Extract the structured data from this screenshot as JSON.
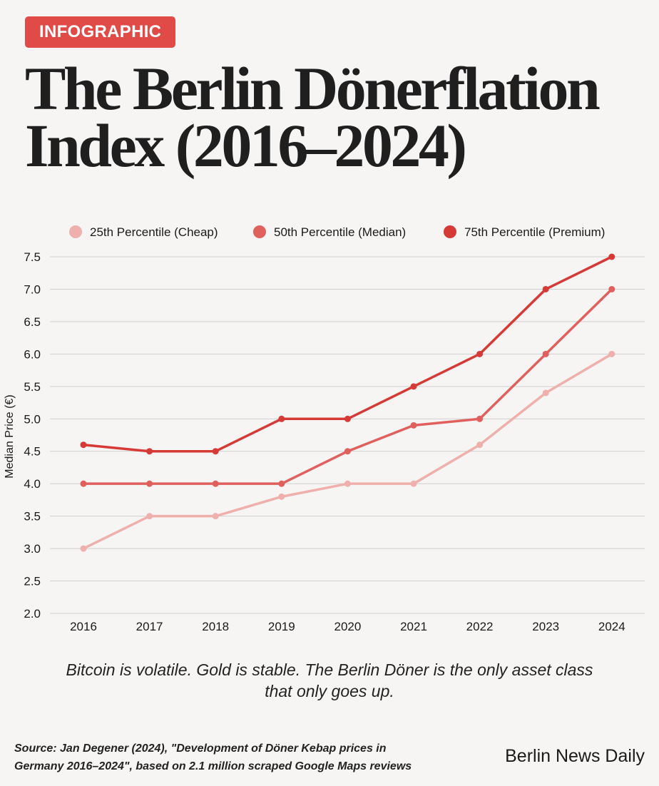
{
  "badge": "INFOGRAPHIC",
  "title": {
    "line1": "The Berlin Dönerflation",
    "line2": "Index (2016–2024)"
  },
  "chart_data": {
    "type": "line",
    "title": "The Berlin Dönerflation Index (2016–2024)",
    "xlabel": "",
    "ylabel": "Median Price (€)",
    "categories": [
      "2016",
      "2017",
      "2018",
      "2019",
      "2020",
      "2021",
      "2022",
      "2023",
      "2024"
    ],
    "ylim": [
      2.0,
      7.5
    ],
    "yticks": [
      "2.0",
      "2.5",
      "3.0",
      "3.5",
      "4.0",
      "4.5",
      "5.0",
      "5.5",
      "6.0",
      "6.5",
      "7.0",
      "7.5"
    ],
    "grid": true,
    "legend_position": "top",
    "series": [
      {
        "name": "25th Percentile (Cheap)",
        "color": "#efb0ad",
        "values": [
          3.0,
          3.5,
          3.5,
          3.8,
          4.0,
          4.0,
          4.6,
          5.4,
          6.0
        ]
      },
      {
        "name": "50th Percentile (Median)",
        "color": "#e0605d",
        "values": [
          4.0,
          4.0,
          4.0,
          4.0,
          4.5,
          4.9,
          5.0,
          6.0,
          7.0
        ]
      },
      {
        "name": "75th Percentile (Premium)",
        "color": "#d63a36",
        "values": [
          4.6,
          4.5,
          4.5,
          5.0,
          5.0,
          5.5,
          6.0,
          7.0,
          7.5
        ]
      }
    ]
  },
  "subtitle": {
    "line1": "Bitcoin is volatile. Gold is stable. The Berlin Döner is the only asset class",
    "line2": "that only goes up."
  },
  "source": {
    "line1": "Source: Jan Degener (2024), \"Development of Döner Kebap prices in",
    "line2": "Germany 2016–2024\", based on 2.1 million scraped Google Maps reviews"
  },
  "brand": "Berlin News Daily"
}
